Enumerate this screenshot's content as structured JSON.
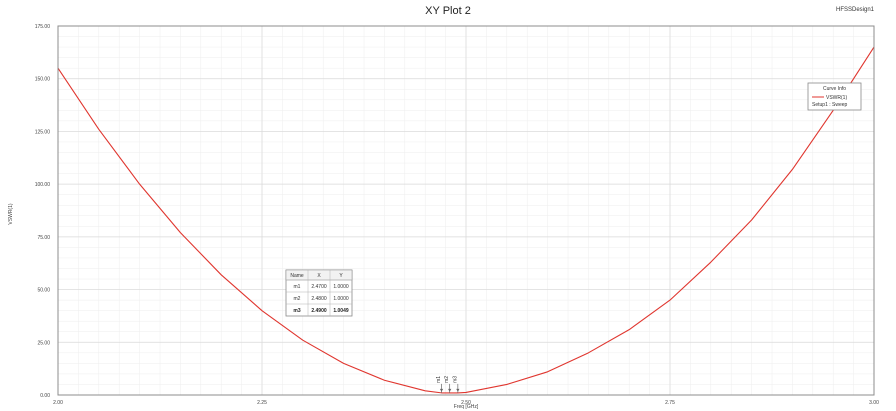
{
  "header": {
    "title": "XY Plot 2",
    "design": "HFSSDesign1"
  },
  "legend": {
    "title": "Curve Info",
    "series_label": "VSWR(1)",
    "setup_label": "Setup1 : Sweep"
  },
  "marker_table": {
    "headers": [
      "Name",
      "X",
      "Y"
    ],
    "rows": [
      {
        "name": "m1",
        "x": "2.4700",
        "y": "1.0000"
      },
      {
        "name": "m2",
        "x": "2.4800",
        "y": "1.0000"
      },
      {
        "name": "m3",
        "x": "2.4900",
        "y": "1.0049"
      }
    ]
  },
  "chart_data": {
    "type": "line",
    "title": "XY Plot 2",
    "xlabel": "Freq [GHz]",
    "ylabel": "VSWR(1)",
    "xlim": [
      2.0,
      3.0
    ],
    "ylim": [
      0,
      175
    ],
    "xticks": [
      "2.00",
      "2.25",
      "2.50",
      "2.75",
      "3.00"
    ],
    "yticks": [
      "0.00",
      "25.00",
      "50.00",
      "75.00",
      "100.00",
      "125.00",
      "150.00",
      "175.00"
    ],
    "series": [
      {
        "name": "VSWR(1)",
        "color": "#e0362f",
        "x": [
          2.0,
          2.05,
          2.1,
          2.15,
          2.2,
          2.25,
          2.3,
          2.35,
          2.4,
          2.45,
          2.47,
          2.48,
          2.49,
          2.5,
          2.55,
          2.6,
          2.65,
          2.7,
          2.75,
          2.8,
          2.85,
          2.9,
          2.95,
          3.0
        ],
        "y": [
          155,
          126,
          100,
          77,
          57,
          40,
          26,
          15,
          7,
          2,
          1.0,
          1.0,
          1.0,
          1.2,
          5,
          11,
          20,
          31,
          45,
          63,
          83,
          107,
          135,
          165
        ]
      }
    ],
    "markers": [
      {
        "name": "m1",
        "x": 2.47,
        "y": 1.0
      },
      {
        "name": "m2",
        "x": 2.48,
        "y": 1.0
      },
      {
        "name": "m3",
        "x": 2.49,
        "y": 1.0049
      }
    ],
    "grid": true,
    "legend_position": "top-right"
  }
}
